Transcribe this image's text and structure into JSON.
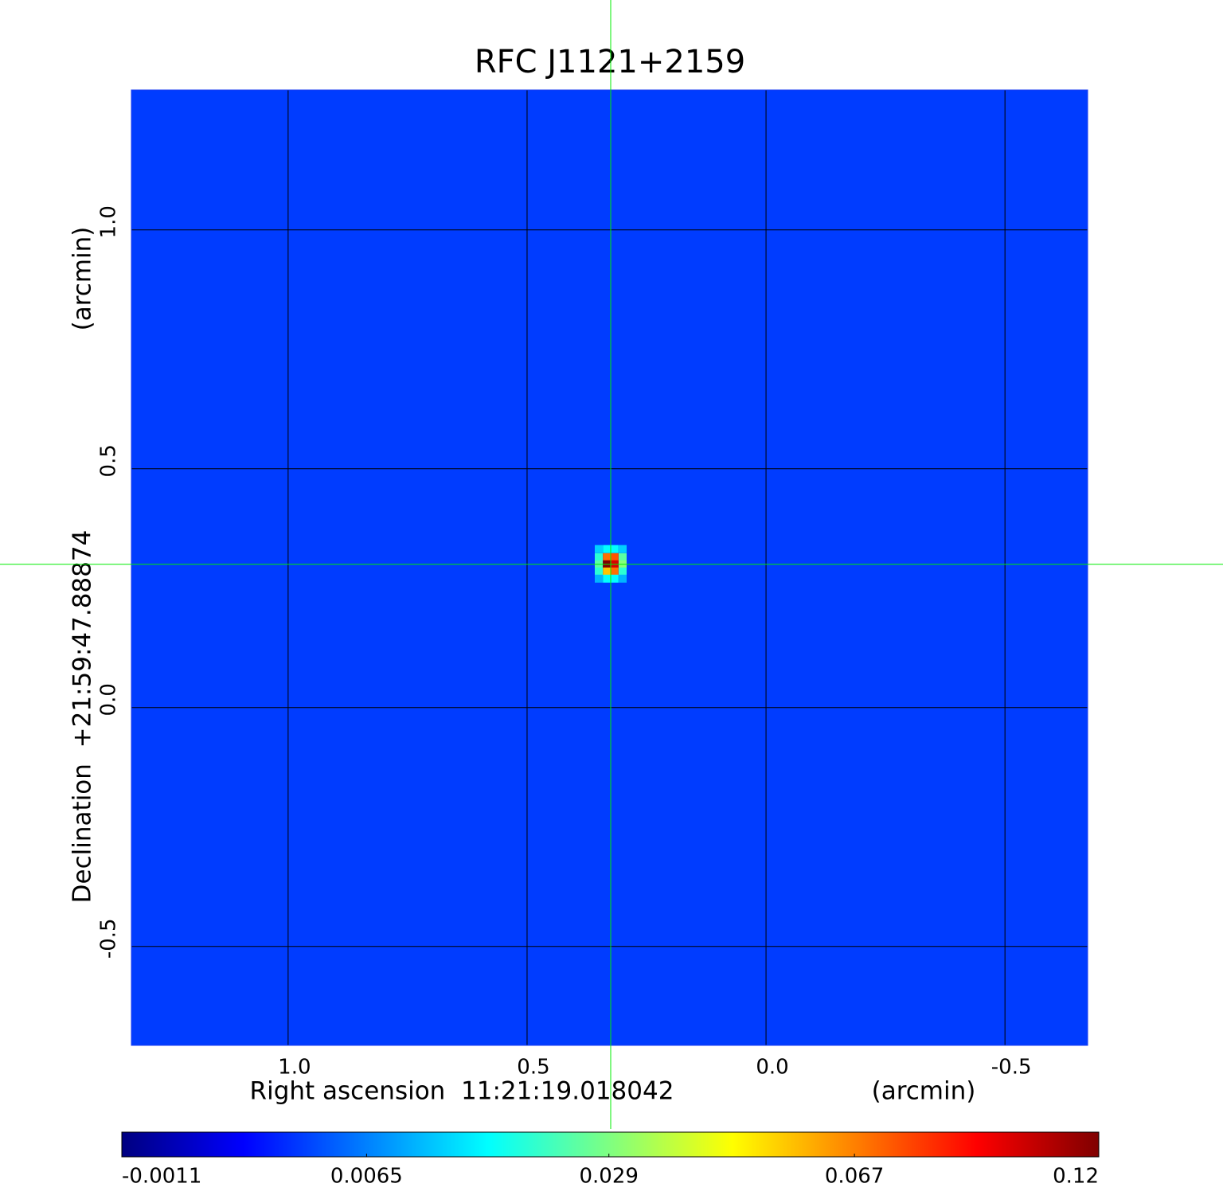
{
  "chart_data": {
    "type": "image",
    "title": "RFC J1121+2159",
    "title_color": "#1414d2",
    "x_label": "Right ascension  11:21:19.018042",
    "x_unit": "(arcmin)",
    "y_label": "Declination  +21:59:47.88874",
    "y_unit": "(arcmin)",
    "xlim": [
      1.328,
      -0.673
    ],
    "ylim": [
      -0.707,
      1.293
    ],
    "xticks": [
      {
        "value": 1,
        "label": "1.0"
      },
      {
        "value": 0.5,
        "label": "0.5"
      },
      {
        "value": 0,
        "label": "0.0"
      },
      {
        "value": -0.5,
        "label": "-0.5"
      }
    ],
    "yticks": [
      {
        "value": 1,
        "label": "1.0"
      },
      {
        "value": 0.5,
        "label": "0.5"
      },
      {
        "value": 0,
        "label": "0.0"
      },
      {
        "value": -0.5,
        "label": "-0.5"
      }
    ],
    "grid": true,
    "colormap": "jet",
    "background": 0.003,
    "pixels": {
      "x": [
        0.35,
        0.333,
        0.317,
        0.3,
        0.35,
        0.333,
        0.317,
        0.3,
        0.35,
        0.333,
        0.317,
        0.3,
        0.35,
        0.333,
        0.317,
        0.3,
        0.35,
        0.333,
        0.317,
        0.3
      ],
      "y": [
        0.332,
        0.332,
        0.332,
        0.332,
        0.315,
        0.315,
        0.315,
        0.315,
        0.3,
        0.3,
        0.3,
        0.3,
        0.285,
        0.285,
        0.285,
        0.285,
        0.27,
        0.27,
        0.27,
        0.27
      ],
      "values": [
        0.012,
        0.016,
        0.016,
        0.012,
        0.02,
        0.07,
        0.075,
        0.025,
        0.025,
        0.12,
        0.1,
        0.03,
        0.02,
        0.055,
        0.07,
        0.02,
        0.01,
        0.016,
        0.016,
        0.01
      ]
    },
    "crosshair": {
      "x": 0.325,
      "y": 0.3,
      "color": "#00ee00"
    },
    "colorbar": {
      "scale": "sqrt",
      "lim": [
        -0.0011,
        0.12
      ],
      "ticks": [
        -0.0011,
        0.0065,
        0.029,
        0.067,
        0.12
      ]
    }
  }
}
